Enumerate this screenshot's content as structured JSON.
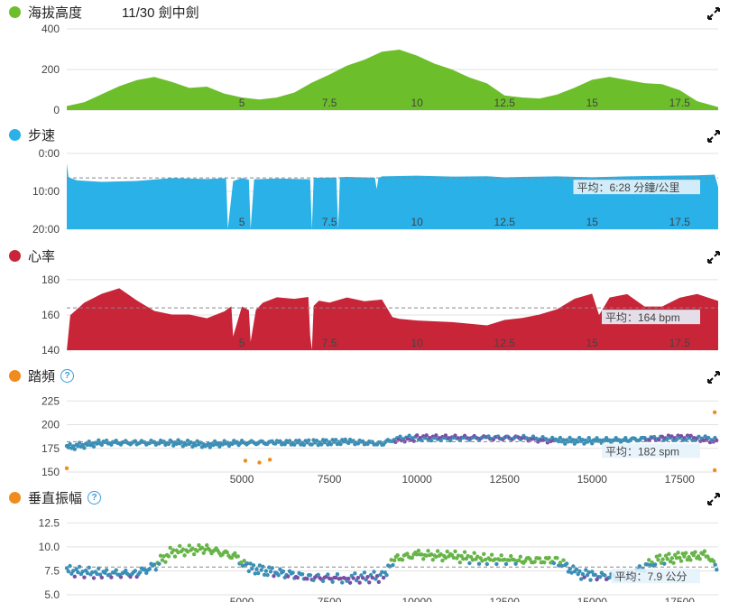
{
  "colors": {
    "elevation": "#6cbf2a",
    "pace": "#29b1e8",
    "heartrate": "#c82539",
    "cadence_dot": "#f08c1e",
    "gct_dot": "#f08c1e",
    "cadence_blue": "#3a8fb7",
    "cadence_purple": "#7b4fa6",
    "cadence_green": "#67b548",
    "cadence_orange": "#f08c1e"
  },
  "panels": {
    "elevation": {
      "title": "海拔高度",
      "extra": "11/30 劍中劍",
      "icon": "expand-icon"
    },
    "pace": {
      "title": "步速",
      "avg": "平均：6:28 分鐘/公里",
      "icon": "expand-icon"
    },
    "heartrate": {
      "title": "心率",
      "avg": "平均：164 bpm",
      "icon": "expand-icon"
    },
    "cadence": {
      "title": "踏頻",
      "help": "?",
      "avg": "平均：182 spm",
      "icon": "expand-icon"
    },
    "vo": {
      "title": "垂直振幅",
      "help": "?",
      "avg": "平均：7.9 公分",
      "icon": "expand-icon"
    }
  },
  "chart_data": [
    {
      "type": "area",
      "name": "elevation",
      "x_ticks": [
        "5",
        "7.5",
        "10",
        "12.5",
        "15",
        "17.5"
      ],
      "x_tick_values": [
        5,
        7.5,
        10,
        12.5,
        15,
        17.5
      ],
      "xlim": [
        0,
        18.6
      ],
      "y_ticks": [
        "0",
        "200",
        "400"
      ],
      "y_tick_values": [
        0,
        200,
        400
      ],
      "ylim": [
        0,
        400
      ],
      "x": [
        0,
        0.5,
        1,
        1.5,
        2,
        2.5,
        3,
        3.5,
        4,
        4.5,
        5,
        5.5,
        6,
        6.5,
        7,
        7.5,
        8,
        8.5,
        9,
        9.5,
        10,
        10.5,
        11,
        11.5,
        12,
        12.5,
        13,
        13.5,
        14,
        14.5,
        15,
        15.5,
        16,
        16.5,
        17,
        17.5,
        18,
        18.6
      ],
      "y": [
        20,
        40,
        80,
        120,
        150,
        165,
        140,
        110,
        115,
        80,
        60,
        50,
        60,
        85,
        135,
        175,
        220,
        250,
        290,
        300,
        270,
        230,
        200,
        160,
        130,
        70,
        60,
        55,
        75,
        110,
        150,
        165,
        150,
        135,
        130,
        100,
        45,
        15
      ]
    },
    {
      "type": "area",
      "name": "pace",
      "x_ticks": [
        "5",
        "7.5",
        "10",
        "12.5",
        "15",
        "17.5"
      ],
      "x_tick_values": [
        5,
        7.5,
        10,
        12.5,
        15,
        17.5
      ],
      "xlim": [
        0,
        18.6
      ],
      "y_ticks": [
        "0:00",
        "10:00",
        "20:00"
      ],
      "y_tick_values": [
        0,
        10,
        20
      ],
      "ylim": [
        0,
        20
      ],
      "inverted": true,
      "average": 6.47,
      "x": [
        0,
        0.05,
        0.3,
        1,
        2,
        3,
        4,
        4.55,
        4.6,
        4.75,
        5,
        5.2,
        5.25,
        5.35,
        5.5,
        6,
        6.5,
        6.95,
        7.0,
        7.05,
        7.2,
        7.7,
        7.75,
        7.8,
        8,
        8.8,
        8.85,
        8.9,
        9,
        10,
        11,
        12,
        12.5,
        13,
        14,
        15,
        16,
        17,
        18,
        18.5,
        18.6
      ],
      "y": [
        2.5,
        6.2,
        7,
        7.4,
        7.2,
        6.5,
        6.8,
        6.6,
        20,
        7.4,
        6.6,
        7.0,
        20,
        6.8,
        6.7,
        6.5,
        6.6,
        6.7,
        20,
        6.5,
        6.4,
        6.4,
        20,
        6.4,
        6.3,
        6.5,
        9.5,
        6.5,
        6.0,
        5.8,
        6.0,
        5.9,
        6.2,
        6.1,
        6.0,
        6.3,
        6.1,
        6.0,
        5.9,
        5.7,
        9.0
      ]
    },
    {
      "type": "area",
      "name": "heartrate",
      "x_ticks": [
        "5",
        "7.5",
        "10",
        "12.5",
        "15",
        "17.5"
      ],
      "x_tick_values": [
        5,
        7.5,
        10,
        12.5,
        15,
        17.5
      ],
      "xlim": [
        0,
        18.6
      ],
      "y_ticks": [
        "140",
        "160",
        "180"
      ],
      "y_tick_values": [
        140,
        160,
        180
      ],
      "ylim": [
        140,
        182
      ],
      "average": 164,
      "x": [
        0,
        0.1,
        0.5,
        1,
        1.5,
        2,
        2.5,
        3,
        3.5,
        4,
        4.5,
        4.7,
        4.75,
        5,
        5.2,
        5.25,
        5.4,
        5.6,
        6,
        6.5,
        6.9,
        6.95,
        7.0,
        7.05,
        7.2,
        7.5,
        8,
        8.5,
        9,
        9.3,
        9.5,
        10,
        11,
        12,
        12.5,
        13,
        13.5,
        14,
        14.5,
        15,
        15.2,
        15.5,
        16,
        16.5,
        17,
        17.5,
        18,
        18.6
      ],
      "y": [
        140,
        160,
        167,
        172,
        175,
        168,
        162,
        160,
        160,
        158,
        162,
        165,
        148,
        165,
        163,
        145,
        163,
        167,
        170,
        169,
        170,
        148,
        140,
        165,
        168,
        167,
        170,
        168,
        169,
        159,
        158,
        157,
        156,
        154,
        157,
        158,
        160,
        163,
        169,
        172,
        160,
        170,
        172,
        165,
        165,
        170,
        172,
        168
      ]
    },
    {
      "type": "scatter",
      "name": "cadence",
      "x_ticks": [
        "5000",
        "7500",
        "10000",
        "12500",
        "15000",
        "17500"
      ],
      "x_tick_values": [
        5000,
        7500,
        10000,
        12500,
        15000,
        17500
      ],
      "xlim": [
        0,
        18600
      ],
      "y_ticks": [
        "150",
        "175",
        "200",
        "225"
      ],
      "y_tick_values": [
        150,
        175,
        200,
        225
      ],
      "ylim": [
        150,
        230
      ],
      "average": 182,
      "trend": [
        [
          0,
          176
        ],
        [
          1000,
          181
        ],
        [
          2000,
          181
        ],
        [
          3000,
          181
        ],
        [
          4000,
          179
        ],
        [
          5000,
          181
        ],
        [
          6000,
          181
        ],
        [
          7000,
          181
        ],
        [
          8000,
          182
        ],
        [
          9000,
          180
        ],
        [
          9300,
          184
        ],
        [
          10000,
          186
        ],
        [
          12000,
          186
        ],
        [
          13000,
          186
        ],
        [
          14000,
          183
        ],
        [
          15000,
          183
        ],
        [
          16000,
          184
        ],
        [
          17000,
          186
        ],
        [
          18000,
          186
        ],
        [
          18600,
          183
        ]
      ],
      "outliers": [
        [
          0,
          154
        ],
        [
          5500,
          160
        ],
        [
          5800,
          163
        ],
        [
          5100,
          162
        ],
        [
          18500,
          152
        ],
        [
          18500,
          213
        ]
      ]
    },
    {
      "type": "scatter",
      "name": "vertical_oscillation",
      "x_ticks": [
        "5000",
        "7500",
        "10000",
        "12500",
        "15000",
        "17500"
      ],
      "x_tick_values": [
        5000,
        7500,
        10000,
        12500,
        15000,
        17500
      ],
      "xlim": [
        0,
        18600
      ],
      "y_ticks": [
        "5.0",
        "7.5",
        "10.0",
        "12.5"
      ],
      "y_tick_values": [
        5.0,
        7.5,
        10.0,
        12.5
      ],
      "ylim": [
        5,
        13
      ],
      "average": 7.9,
      "trend": [
        [
          0,
          7.5
        ],
        [
          1000,
          7.2
        ],
        [
          2000,
          7.2
        ],
        [
          2500,
          8.0
        ],
        [
          3000,
          9.5
        ],
        [
          4000,
          9.8
        ],
        [
          4800,
          9.0
        ],
        [
          5200,
          7.8
        ],
        [
          6000,
          7.3
        ],
        [
          7000,
          6.8
        ],
        [
          8000,
          6.7
        ],
        [
          9000,
          6.9
        ],
        [
          9400,
          8.8
        ],
        [
          10000,
          9.2
        ],
        [
          11000,
          9.0
        ],
        [
          12000,
          8.7
        ],
        [
          13000,
          8.6
        ],
        [
          14000,
          8.6
        ],
        [
          14600,
          7.2
        ],
        [
          15000,
          7.0
        ],
        [
          16000,
          6.8
        ],
        [
          16800,
          8.6
        ],
        [
          17500,
          8.9
        ],
        [
          18300,
          9.2
        ],
        [
          18600,
          7.5
        ]
      ]
    }
  ]
}
